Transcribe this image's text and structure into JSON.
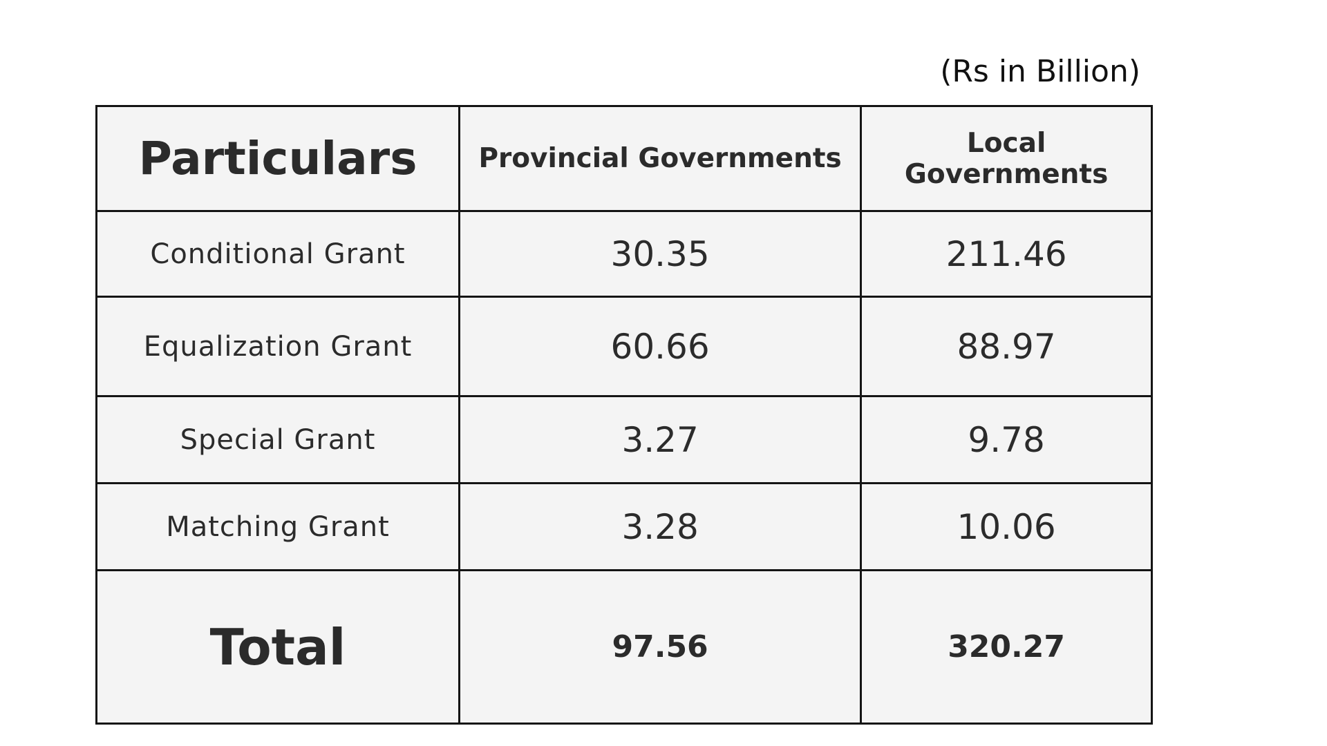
{
  "unit_note": "(Rs in Billion)",
  "table": {
    "headers": [
      "Particulars",
      "Provincial Governments",
      "Local Governments"
    ],
    "rows": [
      {
        "label": "Conditional Grant",
        "provincial": "30.35",
        "local": "211.46"
      },
      {
        "label": "Equalization Grant",
        "provincial": "60.66",
        "local": "88.97"
      },
      {
        "label": "Special Grant",
        "provincial": "3.27",
        "local": "9.78"
      },
      {
        "label": "Matching Grant",
        "provincial": "3.28",
        "local": "10.06"
      }
    ],
    "total": {
      "label": "Total",
      "provincial": "97.56",
      "local": "320.27"
    }
  },
  "colors": {
    "cell_background": "#f4f4f4",
    "border": "#141414",
    "text": "#2b2b2b"
  }
}
